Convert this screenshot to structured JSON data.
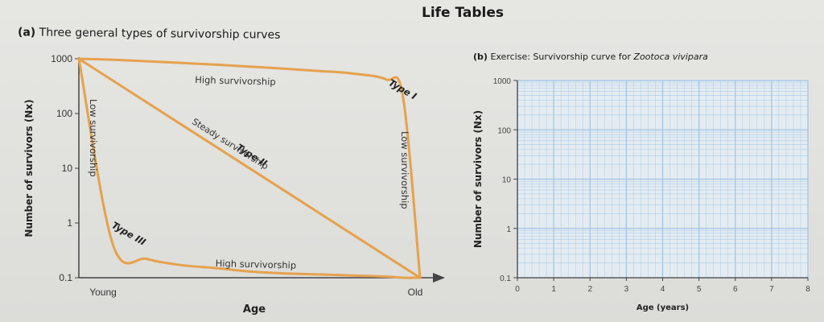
{
  "title": "Life Tables",
  "colors": {
    "curve": "#e5a24c",
    "grid": "#9fc3e3",
    "axis": "#444444"
  },
  "panel_a": {
    "label": "(a)",
    "title": "Three general types of survivorship curves",
    "ylabel": "Number of survivors (Nx)",
    "xlabel": "Age",
    "x_tick_left": "Young",
    "x_tick_right": "Old",
    "annotations": {
      "type1": "Type I",
      "type2": "Type II",
      "type3": "Type III",
      "high_top": "High survivorship",
      "steady": "Steady survivorship",
      "low_left": "Low survivorship",
      "low_right": "Low survivorship",
      "high_bottom": "High survivorship"
    }
  },
  "panel_b": {
    "label": "(b)",
    "title_prefix": "Exercise: Survivorship curve for",
    "title_species": "Zootoca vivipara",
    "ylabel": "Number of survivors (Nx)",
    "xlabel": "Age (years)"
  },
  "chart_data": [
    {
      "type": "line",
      "title": "Three general types of survivorship curves",
      "xlabel": "Age",
      "ylabel": "Number of survivors (Nx)",
      "yscale": "log",
      "ylim": [
        0.1,
        1000
      ],
      "y_ticks": [
        "1000",
        "100",
        "10",
        "1",
        "0.1"
      ],
      "y_tick_values": [
        1000,
        100,
        10,
        1,
        0.1
      ],
      "x_ticks": [
        "Young",
        "Old"
      ],
      "x": [
        0,
        0.1,
        0.2,
        0.3,
        0.4,
        0.5,
        0.6,
        0.7,
        0.8,
        0.9,
        0.95,
        1.0
      ],
      "series": [
        {
          "name": "Type I",
          "values": [
            1000,
            960,
            900,
            840,
            780,
            720,
            660,
            600,
            540,
            420,
            200,
            0.1
          ]
        },
        {
          "name": "Type II",
          "values": [
            1000,
            400,
            160,
            63,
            25,
            10,
            4,
            1.6,
            0.63,
            0.25,
            0.16,
            0.1
          ]
        },
        {
          "name": "Type III",
          "values": [
            1000,
            0.4,
            0.22,
            0.17,
            0.15,
            0.13,
            0.12,
            0.115,
            0.11,
            0.105,
            0.1,
            0.1
          ]
        }
      ],
      "grid": false
    },
    {
      "type": "line",
      "title": "Exercise: Survivorship curve for Zootoca vivipara",
      "xlabel": "Age (years)",
      "ylabel": "Number of survivors (Nx)",
      "yscale": "log",
      "ylim": [
        0.1,
        1000
      ],
      "y_ticks": [
        "1000",
        "100",
        "10",
        "1",
        "0.1"
      ],
      "y_tick_values": [
        1000,
        100,
        10,
        1,
        0.1
      ],
      "x_ticks": [
        "0",
        "1",
        "2",
        "3",
        "4",
        "5",
        "6",
        "7",
        "8"
      ],
      "xlim": [
        0,
        8
      ],
      "series": [],
      "grid": true
    }
  ]
}
